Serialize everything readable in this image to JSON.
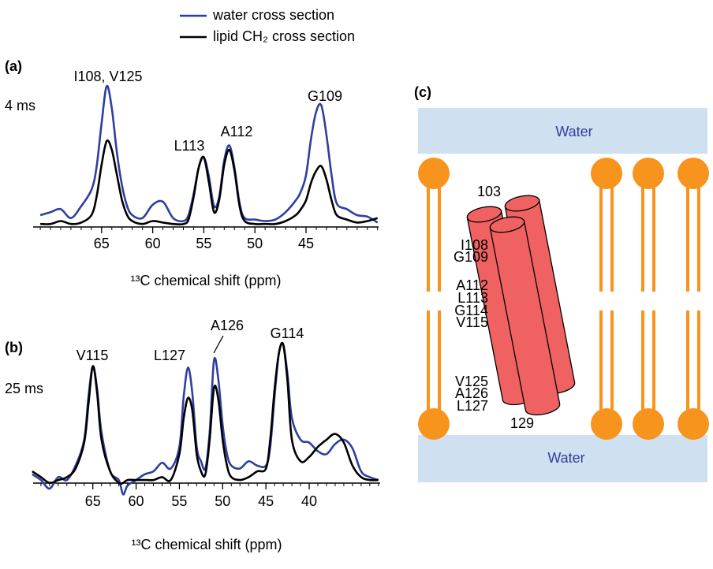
{
  "chart_data": [
    {
      "type": "line",
      "panel_label": "(a)",
      "mixing_time": "4 ms",
      "xlabel": "¹³C chemical shift (ppm)",
      "xlim": [
        71.7,
        37.9
      ],
      "xticks": [
        65,
        60,
        55,
        50,
        45
      ],
      "minor_xticks": [
        71,
        70,
        69,
        68,
        67,
        66,
        64,
        63,
        62,
        61,
        59,
        58,
        57,
        56,
        54,
        53,
        52,
        51,
        49,
        48,
        47,
        46,
        44,
        43,
        42,
        41,
        40,
        39,
        38
      ],
      "ylim": [
        0,
        100
      ],
      "annotations": [
        "I108, V125",
        "L113",
        "A112",
        "G109"
      ],
      "x": [
        71,
        70,
        69,
        68,
        67,
        66,
        65.5,
        65,
        64.5,
        64,
        63.5,
        63,
        62.5,
        62,
        61,
        60,
        59,
        58,
        57,
        56.5,
        56,
        55.5,
        55,
        54.5,
        54,
        53.5,
        53,
        52.5,
        52,
        51.5,
        51,
        50,
        49,
        48,
        47,
        46,
        45.5,
        45,
        44.5,
        44,
        43.5,
        43,
        42.5,
        42,
        41,
        40,
        39,
        38
      ],
      "series": [
        {
          "name": "water cross section",
          "color": "#2e3f9e",
          "values": [
            8,
            10,
            12,
            6,
            14,
            25,
            40,
            70,
            95,
            80,
            50,
            28,
            14,
            8,
            6,
            15,
            17,
            6,
            4,
            8,
            22,
            40,
            47,
            34,
            14,
            20,
            45,
            55,
            40,
            16,
            6,
            5,
            4,
            5,
            10,
            18,
            24,
            35,
            60,
            78,
            82,
            62,
            35,
            16,
            12,
            8,
            7,
            3
          ]
        },
        {
          "name": "lipid CH₂ cross section",
          "color": "#000000",
          "values": [
            2,
            2,
            4,
            2,
            3,
            8,
            20,
            42,
            58,
            52,
            35,
            18,
            8,
            4,
            2,
            4,
            3,
            2,
            2,
            5,
            20,
            40,
            47,
            30,
            10,
            18,
            42,
            52,
            38,
            14,
            4,
            2,
            2,
            2,
            4,
            8,
            12,
            18,
            30,
            38,
            41,
            32,
            18,
            8,
            5,
            3,
            4,
            6
          ]
        }
      ]
    },
    {
      "type": "line",
      "panel_label": "(b)",
      "mixing_time": "25 ms",
      "xlabel": "¹³C chemical shift (ppm)",
      "xlim": [
        71.9,
        31.8
      ],
      "xticks": [
        65,
        60,
        55,
        50,
        45,
        40
      ],
      "minor_xticks": [
        71,
        70,
        69,
        68,
        67,
        66,
        64,
        63,
        62,
        61,
        59,
        58,
        57,
        56,
        54,
        53,
        52,
        51,
        49,
        48,
        47,
        46,
        44,
        43,
        42,
        41,
        39,
        38,
        37,
        36,
        35,
        34,
        33,
        32
      ],
      "ylim": [
        -10,
        100
      ],
      "annotations": [
        "V115",
        "L127",
        "A126",
        "G114"
      ],
      "x": [
        72,
        71,
        70,
        69,
        68,
        67,
        66,
        65.5,
        65,
        64.5,
        64,
        63,
        62,
        61.5,
        61,
        60,
        59,
        58,
        57,
        56,
        55,
        54.5,
        54,
        53.5,
        53,
        52.5,
        52,
        51.5,
        51,
        50.5,
        50,
        49.5,
        49,
        48,
        47,
        46,
        45,
        44.5,
        44,
        43.5,
        43,
        42.5,
        42,
        41,
        40,
        39,
        38,
        37,
        36,
        35,
        34,
        33,
        32
      ],
      "series": [
        {
          "color": "#2e3f9e",
          "values": [
            6,
            2,
            -4,
            4,
            2,
            12,
            30,
            60,
            81,
            65,
            35,
            8,
            2,
            -8,
            -2,
            2,
            6,
            8,
            14,
            10,
            25,
            60,
            80,
            62,
            25,
            15,
            10,
            35,
            85,
            72,
            40,
            20,
            12,
            10,
            15,
            12,
            12,
            25,
            60,
            90,
            96,
            75,
            45,
            30,
            28,
            22,
            20,
            27,
            30,
            24,
            8,
            4,
            2
          ]
        },
        {
          "color": "#000000",
          "values": [
            8,
            4,
            0,
            2,
            4,
            10,
            28,
            55,
            81,
            62,
            30,
            8,
            0,
            0,
            2,
            2,
            2,
            2,
            4,
            2,
            20,
            45,
            59,
            50,
            20,
            8,
            6,
            30,
            66,
            58,
            30,
            12,
            4,
            2,
            4,
            8,
            10,
            30,
            65,
            90,
            96,
            70,
            30,
            15,
            18,
            25,
            30,
            34,
            28,
            12,
            4,
            2,
            2
          ]
        }
      ]
    }
  ],
  "diagram": {
    "panel_label": "(c)",
    "water_top": "Water",
    "water_bottom": "Water",
    "residues": [
      "103",
      "I108",
      "G109",
      "A112",
      "L113",
      "G114",
      "V115",
      "V125",
      "A126",
      "L127",
      "129"
    ]
  }
}
